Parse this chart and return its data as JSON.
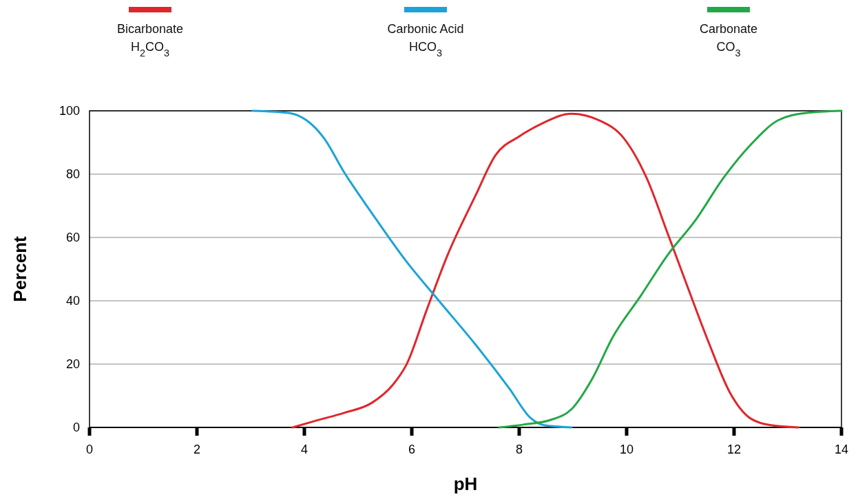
{
  "chart_data": {
    "type": "line",
    "xlabel": "pH",
    "ylabel": "Percent",
    "xlim": [
      0,
      14
    ],
    "ylim": [
      0,
      100
    ],
    "xticks": [
      0,
      2,
      4,
      6,
      8,
      10,
      12,
      14
    ],
    "yticks": [
      0,
      20,
      40,
      60,
      80,
      100
    ],
    "grid": "y",
    "legend": "top",
    "marker": "none",
    "line_style": "solid",
    "series": [
      {
        "name": "Bicarbonate\nH$_{2}$CO$_{3}$",
        "color": "#e0262b",
        "x": [
          3.78,
          4.23,
          4.74,
          5.26,
          5.64,
          5.9,
          6.28,
          6.67,
          7.18,
          7.56,
          8.01,
          8.46,
          8.97,
          9.49,
          9.94,
          10.38,
          10.77,
          11.15,
          11.54,
          11.92,
          12.31,
          12.69,
          13.2
        ],
        "values": [
          0,
          2.2,
          4.6,
          7.8,
          13.3,
          19.8,
          37.2,
          54.6,
          73,
          86,
          92,
          96.3,
          99.1,
          97,
          91.5,
          78.5,
          61,
          43.7,
          26.3,
          11.1,
          2.8,
          0.7,
          0
        ]
      },
      {
        "name": "Carbonic Acid\nHCO$_{3}$",
        "color": "#1ba3d8",
        "x": [
          3.04,
          3.72,
          4.04,
          4.36,
          4.74,
          5.26,
          5.9,
          6.54,
          7.18,
          7.82,
          8.21,
          8.46,
          8.97
        ],
        "values": [
          100,
          99.3,
          97,
          91.5,
          80.6,
          67.6,
          52.4,
          39.3,
          26.3,
          12.2,
          3,
          0.7,
          0
        ]
      },
      {
        "name": "Carbonate\nCO$_{3}$",
        "color": "#23a846",
        "x": [
          7.63,
          8.08,
          8.59,
          8.97,
          9.36,
          9.74,
          10.26,
          10.77,
          11.28,
          11.79,
          12.31,
          12.82,
          13.33,
          14
        ],
        "values": [
          0,
          0.9,
          2.4,
          5.7,
          15.4,
          28.5,
          41.5,
          54.6,
          65.4,
          78.5,
          89.3,
          97,
          99.3,
          100
        ]
      }
    ]
  }
}
